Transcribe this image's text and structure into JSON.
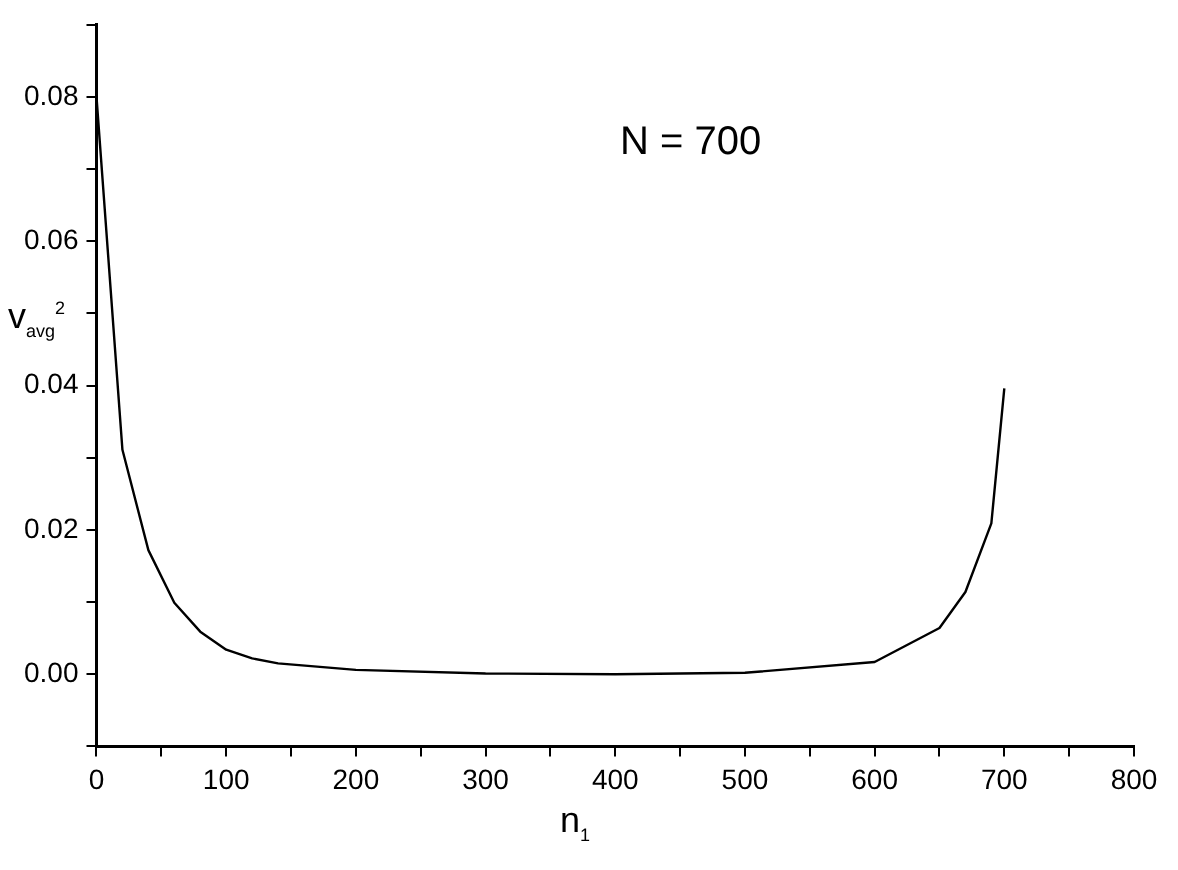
{
  "chart_data": {
    "type": "line",
    "xlabel": "n$_{1}$",
    "ylabel": "v$_{avg}$$^{2}$",
    "annotations": [
      "N = 700"
    ],
    "x": [
      0,
      20,
      40,
      60,
      80,
      100,
      120,
      140,
      200,
      300,
      400,
      500,
      600,
      650,
      670,
      690,
      700
    ],
    "series": [
      {
        "color": "#000000",
        "values": [
          0.08,
          0.0311,
          0.0172,
          0.0099,
          0.0059,
          0.0034,
          0.0022,
          0.0015,
          0.0006,
          0.0001,
          0.0,
          0.0002,
          0.0017,
          0.0064,
          0.0114,
          0.0209,
          0.0396
        ]
      }
    ],
    "xlim": [
      0,
      800
    ],
    "xticks": [
      0,
      {
        "value": 50,
        "label": null
      },
      100,
      {
        "value": 150,
        "label": null
      },
      200,
      {
        "value": 250,
        "label": null
      },
      300,
      {
        "value": 350,
        "label": null
      },
      400,
      {
        "value": 450,
        "label": null
      },
      500,
      {
        "value": 550,
        "label": null
      },
      600,
      {
        "value": 650,
        "label": null
      },
      700,
      {
        "value": 750,
        "label": null
      },
      800
    ],
    "ylim": [
      -0.01,
      0.09
    ],
    "yticks": [
      {
        "value": -0.01,
        "label": null
      },
      {
        "value": 0,
        "label": "0.00"
      },
      {
        "value": 0.01,
        "label": null
      },
      {
        "value": 0.02,
        "label": "0.02"
      },
      {
        "value": 0.03,
        "label": null
      },
      {
        "value": 0.04,
        "label": "0.04"
      },
      {
        "value": 0.05,
        "label": null
      },
      {
        "value": 0.06,
        "label": "0.06"
      },
      {
        "value": 0.07,
        "label": null
      },
      {
        "value": 0.08,
        "label": "0.08"
      },
      {
        "value": 0.09,
        "label": null
      }
    ],
    "grid": false,
    "legend": false,
    "marker": "none",
    "line_style": "solid"
  }
}
